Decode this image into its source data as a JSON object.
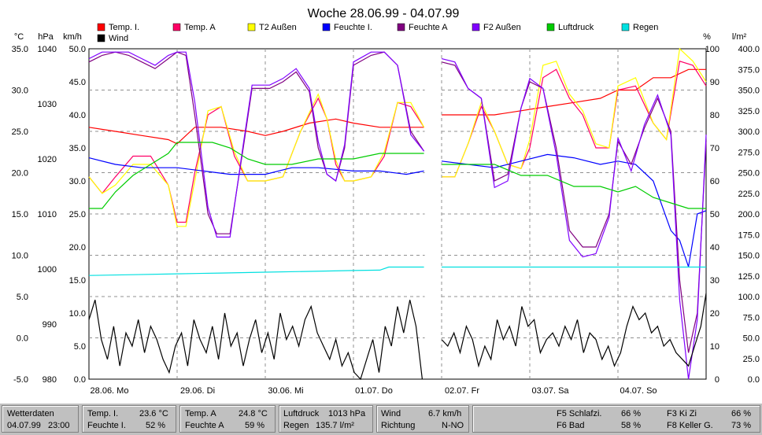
{
  "chart_data": {
    "type": "line",
    "title": "Woche 28.06.99 - 04.07.99",
    "axes": {
      "left_units": [
        "°C",
        "hPa",
        "km/h"
      ],
      "right_units": [
        "%",
        "l/m²"
      ],
      "temp": {
        "ylim": [
          -5,
          35
        ],
        "ticks": [
          "35.0",
          "30.0",
          "25.0",
          "20.0",
          "15.0",
          "10.0",
          "5.0",
          "0.0",
          "-5.0"
        ]
      },
      "pressure": {
        "ylim": [
          980,
          1040
        ],
        "ticks": [
          "1040",
          "1030",
          "1020",
          "1010",
          "1000",
          "990",
          "980"
        ]
      },
      "wind": {
        "ylim": [
          0,
          50
        ],
        "ticks": [
          "50.0",
          "45.0",
          "40.0",
          "35.0",
          "30.0",
          "25.0",
          "20.0",
          "15.0",
          "10.0",
          "5.0",
          "0.0"
        ]
      },
      "humidity": {
        "ylim": [
          0,
          100
        ],
        "ticks": [
          "100",
          "90",
          "80",
          "70",
          "60",
          "50",
          "40",
          "30",
          "20",
          "10",
          "0"
        ]
      },
      "rain": {
        "ylim": [
          0,
          400
        ],
        "ticks": [
          "400.0",
          "375.0",
          "350.0",
          "325.0",
          "300.0",
          "275.0",
          "250.0",
          "225.0",
          "200.0",
          "175.0",
          "150.0",
          "125.0",
          "100.0",
          "75.0",
          "50.0",
          "25.0",
          "0.0"
        ]
      }
    },
    "x_range": [
      0,
      7
    ],
    "x_ticks": [
      "28.06. Mo",
      "29.06. Di",
      "30.06. Mi",
      "01.07. Do",
      "02.07. Fr",
      "03.07. Sa",
      "04.07. So"
    ],
    "gap": [
      3.8,
      4.0
    ],
    "grid": true,
    "legend": [
      {
        "name": "Temp. I.",
        "color": "#ff0000"
      },
      {
        "name": "Temp. A",
        "color": "#ff0066"
      },
      {
        "name": "T2 Außen",
        "color": "#ffff00"
      },
      {
        "name": "Feuchte I.",
        "color": "#0000ff"
      },
      {
        "name": "Feuchte A",
        "color": "#800080"
      },
      {
        "name": "F2 Außen",
        "color": "#8000ff"
      },
      {
        "name": "Luftdruck",
        "color": "#00cc00"
      },
      {
        "name": "Regen",
        "color": "#00e0e0"
      },
      {
        "name": "Wind",
        "color": "#000000"
      }
    ],
    "series": [
      {
        "name": "Temp. I.",
        "axis": "temp",
        "color": "#ff0000",
        "x": [
          0,
          0.3,
          0.6,
          0.9,
          1.0,
          1.2,
          1.5,
          1.8,
          2.0,
          2.2,
          2.5,
          2.8,
          3.0,
          3.3,
          3.6,
          3.8,
          4.0,
          4.3,
          4.6,
          4.9,
          5.2,
          5.5,
          5.8,
          6.0,
          6.2,
          6.4,
          6.6,
          6.8,
          7.0
        ],
        "y": [
          25.5,
          25.0,
          24.5,
          24.0,
          23.5,
          25.5,
          25.5,
          25.0,
          24.5,
          25.0,
          26.0,
          26.5,
          26.0,
          25.5,
          25.5,
          25.5,
          27.0,
          27.0,
          27.0,
          27.5,
          28.0,
          28.5,
          29.0,
          30.0,
          30.0,
          31.5,
          31.5,
          32.5,
          32.5
        ]
      },
      {
        "name": "Temp. A",
        "axis": "temp",
        "color": "#ff0066",
        "x": [
          0,
          0.15,
          0.3,
          0.5,
          0.7,
          0.9,
          1.0,
          1.1,
          1.2,
          1.35,
          1.5,
          1.65,
          1.8,
          2.0,
          2.2,
          2.4,
          2.6,
          2.7,
          2.8,
          2.9,
          3.0,
          3.2,
          3.35,
          3.5,
          3.65,
          3.8,
          4.0,
          4.15,
          4.3,
          4.45,
          4.6,
          4.75,
          4.9,
          5.0,
          5.15,
          5.3,
          5.45,
          5.6,
          5.75,
          5.9,
          6.0,
          6.2,
          6.4,
          6.55,
          6.7,
          6.85,
          7.0
        ],
        "y": [
          19.5,
          17.5,
          19.5,
          22.0,
          22.0,
          18.5,
          14.0,
          14.0,
          20.0,
          27.0,
          28.0,
          22.0,
          19.0,
          19.0,
          19.5,
          25.0,
          29.0,
          26.5,
          21.0,
          19.0,
          19.0,
          19.5,
          22.0,
          28.5,
          28.0,
          25.5,
          19.5,
          19.5,
          23.5,
          28.0,
          25.0,
          21.0,
          20.5,
          23.0,
          31.5,
          32.5,
          29.0,
          27.0,
          23.0,
          23.0,
          30.0,
          30.5,
          26.0,
          24.0,
          33.5,
          33.0,
          30.5
        ]
      },
      {
        "name": "T2 Außen",
        "axis": "temp",
        "color": "#ffff00",
        "x": [
          0,
          0.15,
          0.3,
          0.5,
          0.7,
          0.9,
          1.0,
          1.1,
          1.2,
          1.35,
          1.5,
          1.65,
          1.8,
          2.0,
          2.2,
          2.4,
          2.6,
          2.7,
          2.8,
          2.9,
          3.0,
          3.2,
          3.35,
          3.5,
          3.65,
          3.8,
          4.0,
          4.15,
          4.3,
          4.45,
          4.6,
          4.75,
          4.9,
          5.0,
          5.15,
          5.3,
          5.45,
          5.6,
          5.75,
          5.9,
          6.0,
          6.2,
          6.4,
          6.55,
          6.7,
          6.85,
          7.0
        ],
        "y": [
          19.5,
          17.5,
          18.5,
          21.0,
          21.0,
          18.5,
          13.5,
          13.5,
          19.0,
          27.5,
          28.0,
          22.5,
          19.0,
          19.0,
          19.5,
          25.0,
          29.5,
          26.5,
          21.5,
          19.0,
          19.0,
          19.5,
          22.5,
          28.5,
          28.5,
          25.5,
          19.5,
          19.5,
          23.5,
          28.5,
          25.0,
          21.0,
          20.5,
          24.0,
          33.0,
          33.5,
          29.5,
          27.5,
          23.5,
          23.0,
          30.5,
          31.5,
          26.0,
          24.0,
          36.5,
          33.5,
          31.0
        ]
      },
      {
        "name": "Feuchte I.",
        "axis": "humidity",
        "color": "#0000ff",
        "x": [
          0,
          0.3,
          0.6,
          1.0,
          1.3,
          1.6,
          2.0,
          2.3,
          2.6,
          3.0,
          3.3,
          3.6,
          3.8,
          4.0,
          4.3,
          4.6,
          4.9,
          5.2,
          5.5,
          5.8,
          6.0,
          6.2,
          6.4,
          6.6,
          6.7,
          6.8,
          6.9,
          7.0
        ],
        "y": [
          67,
          65,
          64,
          64,
          63,
          62,
          62,
          64,
          64,
          63,
          63,
          62,
          63,
          66,
          65,
          64,
          66,
          68,
          67,
          65,
          66,
          65,
          60,
          45,
          42,
          34,
          50,
          51
        ]
      },
      {
        "name": "Feuchte A",
        "axis": "humidity",
        "color": "#800080",
        "x": [
          0,
          0.15,
          0.3,
          0.45,
          0.6,
          0.75,
          0.9,
          1.0,
          1.1,
          1.2,
          1.35,
          1.45,
          1.6,
          1.75,
          1.85,
          1.95,
          2.05,
          2.2,
          2.35,
          2.5,
          2.6,
          2.7,
          2.8,
          2.9,
          3.0,
          3.2,
          3.35,
          3.5,
          3.65,
          3.8,
          4.0,
          4.15,
          4.3,
          4.45,
          4.6,
          4.75,
          4.9,
          5.0,
          5.15,
          5.3,
          5.45,
          5.6,
          5.75,
          5.9,
          6.0,
          6.15,
          6.3,
          6.45,
          6.6,
          6.7,
          6.8,
          6.9,
          7.0
        ],
        "y": [
          96,
          98,
          99,
          98,
          96,
          94,
          97,
          99,
          98,
          80,
          50,
          44,
          44,
          70,
          88,
          88,
          88,
          90,
          93,
          87,
          70,
          62,
          60,
          70,
          95,
          98,
          99,
          95,
          75,
          69,
          96,
          95,
          88,
          85,
          60,
          62,
          82,
          90,
          88,
          70,
          45,
          40,
          40,
          50,
          72,
          65,
          76,
          85,
          75,
          30,
          8,
          20,
          72
        ]
      },
      {
        "name": "F2 Außen",
        "axis": "humidity",
        "color": "#8000ff",
        "x": [
          0,
          0.15,
          0.3,
          0.45,
          0.6,
          0.75,
          0.9,
          1.0,
          1.1,
          1.2,
          1.35,
          1.45,
          1.6,
          1.75,
          1.85,
          1.95,
          2.05,
          2.2,
          2.35,
          2.5,
          2.6,
          2.7,
          2.8,
          2.9,
          3.0,
          3.2,
          3.35,
          3.5,
          3.65,
          3.8,
          4.0,
          4.15,
          4.3,
          4.45,
          4.6,
          4.75,
          4.9,
          5.0,
          5.15,
          5.3,
          5.45,
          5.6,
          5.75,
          5.9,
          6.0,
          6.15,
          6.3,
          6.45,
          6.6,
          6.7,
          6.8,
          6.9,
          7.0
        ],
        "y": [
          97,
          99,
          99,
          99,
          97,
          95,
          98,
          99,
          99,
          84,
          52,
          43,
          43,
          71,
          89,
          89,
          89,
          91,
          94,
          88,
          72,
          62,
          60,
          71,
          96,
          99,
          99,
          95,
          74,
          69,
          97,
          96,
          88,
          85,
          58,
          60,
          82,
          91,
          88,
          68,
          42,
          37,
          38,
          49,
          73,
          63,
          77,
          86,
          74,
          24,
          0,
          18,
          74
        ]
      },
      {
        "name": "Luftdruck",
        "axis": "pressure",
        "color": "#00cc00",
        "x": [
          0,
          0.15,
          0.3,
          0.5,
          0.7,
          0.9,
          1.0,
          1.2,
          1.4,
          1.6,
          1.8,
          2.0,
          2.3,
          2.6,
          3.0,
          3.3,
          3.6,
          3.8,
          4.0,
          4.3,
          4.6,
          4.9,
          5.2,
          5.5,
          5.8,
          6.0,
          6.2,
          6.4,
          6.6,
          6.8,
          7.0
        ],
        "y": [
          1011,
          1011,
          1014,
          1017,
          1019,
          1021,
          1023,
          1023,
          1023,
          1022,
          1020,
          1019,
          1019,
          1020,
          1020,
          1021,
          1021,
          1021,
          1019,
          1019,
          1019,
          1017,
          1017,
          1015,
          1015,
          1014,
          1015,
          1013,
          1012,
          1011,
          1011
        ]
      },
      {
        "name": "Regen",
        "axis": "rain",
        "color": "#00e0e0",
        "x": [
          0,
          0.5,
          1.0,
          1.5,
          2.0,
          2.5,
          3.0,
          3.3,
          3.4,
          3.6,
          3.8,
          4.0,
          5.0,
          6.0,
          7.0
        ],
        "y": [
          125.5,
          126.5,
          127.5,
          128.5,
          129.5,
          130.5,
          131.5,
          132,
          135.7,
          135.7,
          135.7,
          135.7,
          135.7,
          135.7,
          135.7
        ]
      },
      {
        "name": "Wind",
        "axis": "wind",
        "color": "#000000",
        "x": [
          0,
          0.07,
          0.14,
          0.21,
          0.28,
          0.35,
          0.42,
          0.49,
          0.56,
          0.63,
          0.7,
          0.77,
          0.84,
          0.91,
          0.98,
          1.05,
          1.12,
          1.19,
          1.26,
          1.33,
          1.4,
          1.47,
          1.54,
          1.61,
          1.68,
          1.75,
          1.82,
          1.89,
          1.96,
          2.03,
          2.1,
          2.17,
          2.24,
          2.31,
          2.38,
          2.45,
          2.52,
          2.59,
          2.66,
          2.73,
          2.8,
          2.87,
          2.94,
          3.01,
          3.08,
          3.15,
          3.22,
          3.29,
          3.36,
          3.43,
          3.5,
          3.57,
          3.64,
          3.71,
          3.78,
          4.0,
          4.07,
          4.14,
          4.21,
          4.28,
          4.35,
          4.42,
          4.49,
          4.56,
          4.63,
          4.7,
          4.77,
          4.84,
          4.91,
          4.98,
          5.05,
          5.12,
          5.19,
          5.26,
          5.33,
          5.4,
          5.47,
          5.54,
          5.61,
          5.68,
          5.75,
          5.82,
          5.89,
          5.96,
          6.03,
          6.1,
          6.17,
          6.24,
          6.31,
          6.38,
          6.45,
          6.52,
          6.59,
          6.66,
          6.73,
          6.8,
          6.87,
          6.94,
          7.0
        ],
        "y": [
          9,
          12,
          6,
          3,
          8,
          2,
          7,
          5,
          9,
          4,
          8,
          6,
          3,
          1,
          5,
          7,
          2,
          9,
          6,
          4,
          8,
          3,
          10,
          5,
          7,
          2,
          6,
          9,
          4,
          7,
          3,
          10,
          6,
          8,
          5,
          9,
          11,
          7,
          5,
          3,
          6,
          2,
          4,
          1,
          0,
          3,
          6,
          1,
          8,
          5,
          11,
          7,
          12,
          8,
          0,
          6,
          5,
          7,
          4,
          8,
          6,
          2,
          5,
          3,
          9,
          6,
          8,
          5,
          11,
          8,
          9,
          4,
          6,
          7,
          5,
          8,
          6,
          9,
          4,
          7,
          6,
          3,
          5,
          2,
          4,
          8,
          11,
          9,
          10,
          7,
          8,
          5,
          6,
          4,
          3,
          2,
          5,
          8,
          13
        ]
      }
    ]
  },
  "status_bar": {
    "wetterdaten": {
      "label": "Wetterdaten",
      "date": "04.07.99",
      "time": "23:00"
    },
    "temp_i": {
      "label": "Temp. I.",
      "value": "23.6 °C"
    },
    "feuchte_i": {
      "label": "Feuchte I.",
      "value": "52 %"
    },
    "temp_a": {
      "label": "Temp. A",
      "value": "24.8 °C"
    },
    "feuchte_a": {
      "label": "Feuchte A",
      "value": "59 %"
    },
    "luftdruck": {
      "label": "Luftdruck",
      "value": "1013 hPa"
    },
    "regen": {
      "label": "Regen",
      "value": "135.7 l/m²"
    },
    "wind": {
      "label": "Wind",
      "value": "6.7 km/h"
    },
    "richtung": {
      "label": "Richtung",
      "value": "N-NO"
    },
    "f5": {
      "label": "F5 Schlafzi.",
      "value": "66 %"
    },
    "f6": {
      "label": "F6 Bad",
      "value": "58 %"
    },
    "f3": {
      "label": "F3 Ki Zi",
      "value": "66 %"
    },
    "f8": {
      "label": "F8 Keller G.",
      "value": "73 %"
    }
  }
}
